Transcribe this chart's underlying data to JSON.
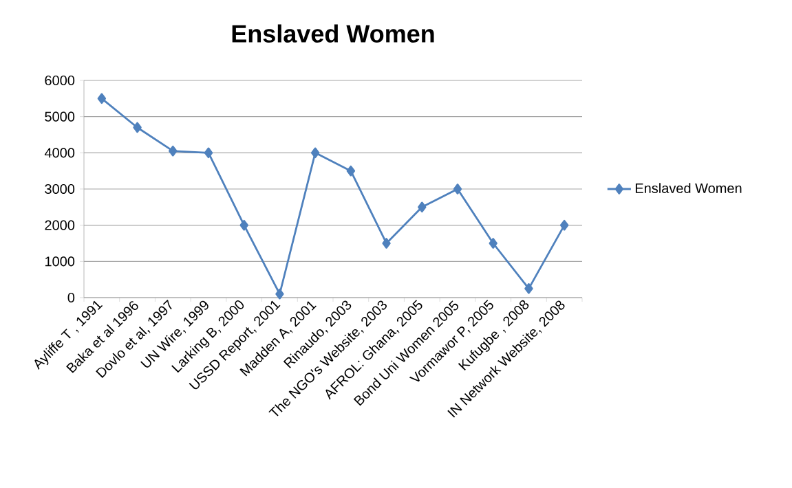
{
  "chart_data": {
    "type": "line",
    "title": "Enslaved Women",
    "categories": [
      "Ayliffe T , 1991",
      "Baka et al 1996",
      "Dovlo et al, 1997",
      "UN Wire, 1999",
      "Larking B, 2000",
      "USSD Report, 2001",
      "Madden A, 2001",
      "Rinaudo, 2003",
      "The NGO's Website, 2003",
      "AFROL: Ghana, 2005",
      "Bond Uni Women 2005",
      "Vormawor P, 2005",
      "Kufugbe , 2008",
      "IN Network Website, 2008"
    ],
    "series": [
      {
        "name": "Enslaved Women",
        "color": "#4f81bd",
        "values": [
          5500,
          4700,
          4050,
          4000,
          2000,
          100,
          4000,
          3500,
          1500,
          2500,
          3000,
          1500,
          250,
          2000
        ]
      }
    ],
    "ylim": [
      0,
      6000
    ],
    "yticks": [
      0,
      1000,
      2000,
      3000,
      4000,
      5000,
      6000
    ],
    "grid": "y",
    "legend": "right",
    "marker": "diamond",
    "line_style": "solid"
  }
}
